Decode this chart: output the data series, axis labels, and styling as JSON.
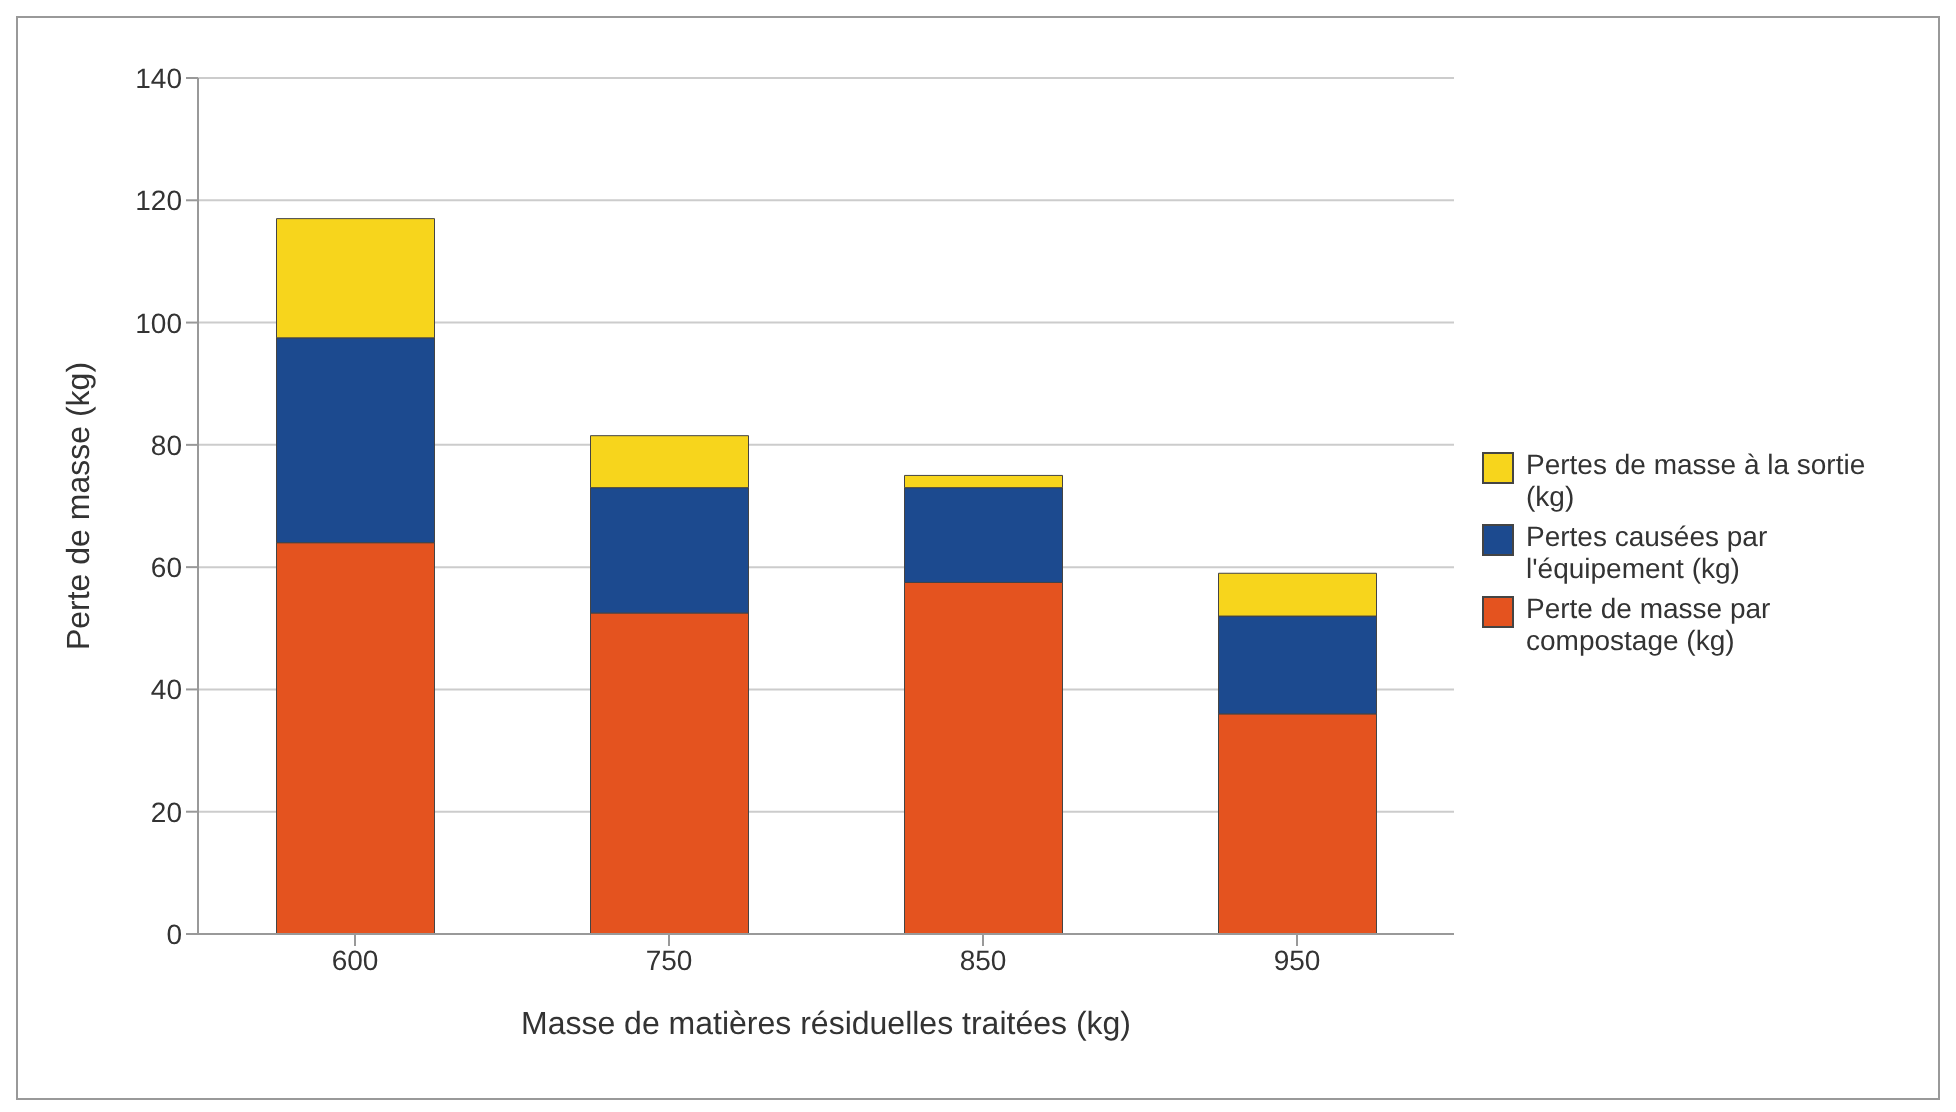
{
  "chart_data": {
    "type": "bar",
    "stacked": true,
    "xlabel": "Masse de matières résiduelles traitées (kg)",
    "ylabel": "Perte de masse (kg)",
    "categories": [
      "600",
      "750",
      "850",
      "950"
    ],
    "series": [
      {
        "name": "Perte de masse par compostage (kg)",
        "color": "#e4531f",
        "values": [
          64,
          52.5,
          57.5,
          36
        ]
      },
      {
        "name": "Pertes causées par l'équipement  (kg)",
        "color": "#1c4a8f",
        "values": [
          33.5,
          20.5,
          15.5,
          16
        ]
      },
      {
        "name": "Pertes de masse à la sortie (kg)",
        "color": "#f7d51c",
        "values": [
          19.5,
          8.5,
          2,
          7
        ]
      }
    ],
    "ylim": [
      0,
      140
    ],
    "yticks": [
      0,
      20,
      40,
      60,
      80,
      100,
      120,
      140
    ],
    "grid": "y",
    "legend": "right"
  }
}
